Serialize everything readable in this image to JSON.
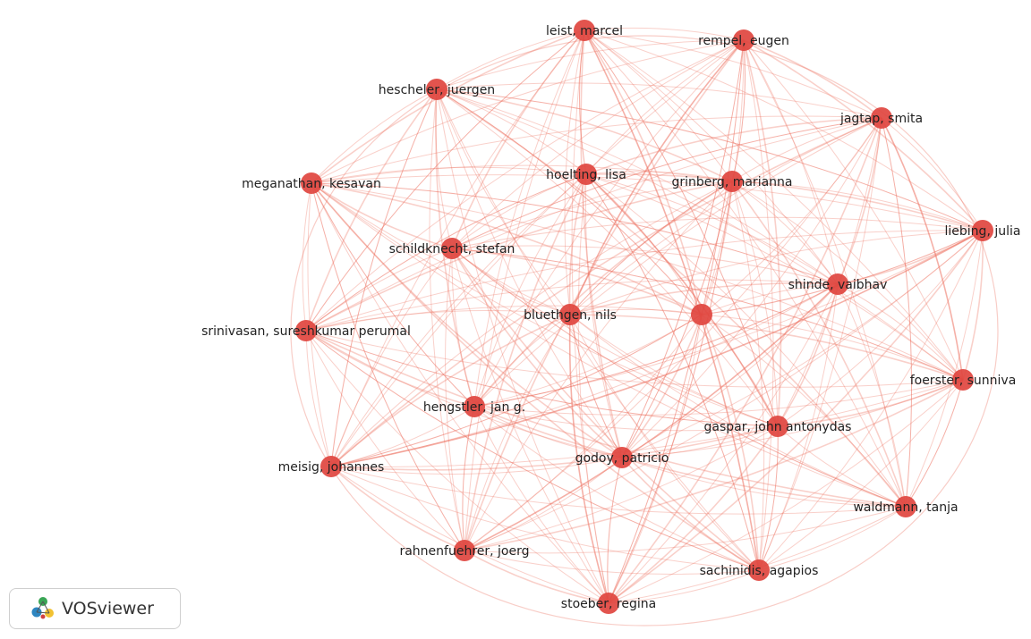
{
  "brand": {
    "name": "VOSviewer",
    "logo_icon": "vosviewer-logo-icon"
  },
  "style": {
    "edge_color": "#ec6f5f",
    "node_color": "#e0453f"
  },
  "network": {
    "nodes": [
      {
        "id": "leist",
        "label": "leist, marcel"
      },
      {
        "id": "rempel",
        "label": "rempel, eugen"
      },
      {
        "id": "hescheler",
        "label": "hescheler, juergen"
      },
      {
        "id": "jagtap",
        "label": "jagtap, smita"
      },
      {
        "id": "meganathan",
        "label": "meganathan, kesavan"
      },
      {
        "id": "hoelting",
        "label": "hoelting, lisa"
      },
      {
        "id": "grinberg",
        "label": "grinberg, marianna"
      },
      {
        "id": "liebing",
        "label": "liebing, julia"
      },
      {
        "id": "schildknecht",
        "label": "schildknecht, stefan"
      },
      {
        "id": "shinde",
        "label": "shinde, vaibhav"
      },
      {
        "id": "srinivasan",
        "label": "srinivasan, sureshkumar perumal"
      },
      {
        "id": "bluethgen",
        "label": "bluethgen, nils"
      },
      {
        "id": "unlabeled",
        "label": ""
      },
      {
        "id": "foerster",
        "label": "foerster, sunniva"
      },
      {
        "id": "hengstler",
        "label": "hengstler, jan g."
      },
      {
        "id": "gaspar",
        "label": "gaspar, john antonydas"
      },
      {
        "id": "godoy",
        "label": "godoy, patricio"
      },
      {
        "id": "meisig",
        "label": "meisig, johannes"
      },
      {
        "id": "waldmann",
        "label": "waldmann, tanja"
      },
      {
        "id": "rahnenfuehrer",
        "label": "rahnenfuehrer, joerg"
      },
      {
        "id": "sachinidis",
        "label": "sachinidis, agapios"
      },
      {
        "id": "stoeber",
        "label": "stoeber, regina"
      }
    ]
  }
}
